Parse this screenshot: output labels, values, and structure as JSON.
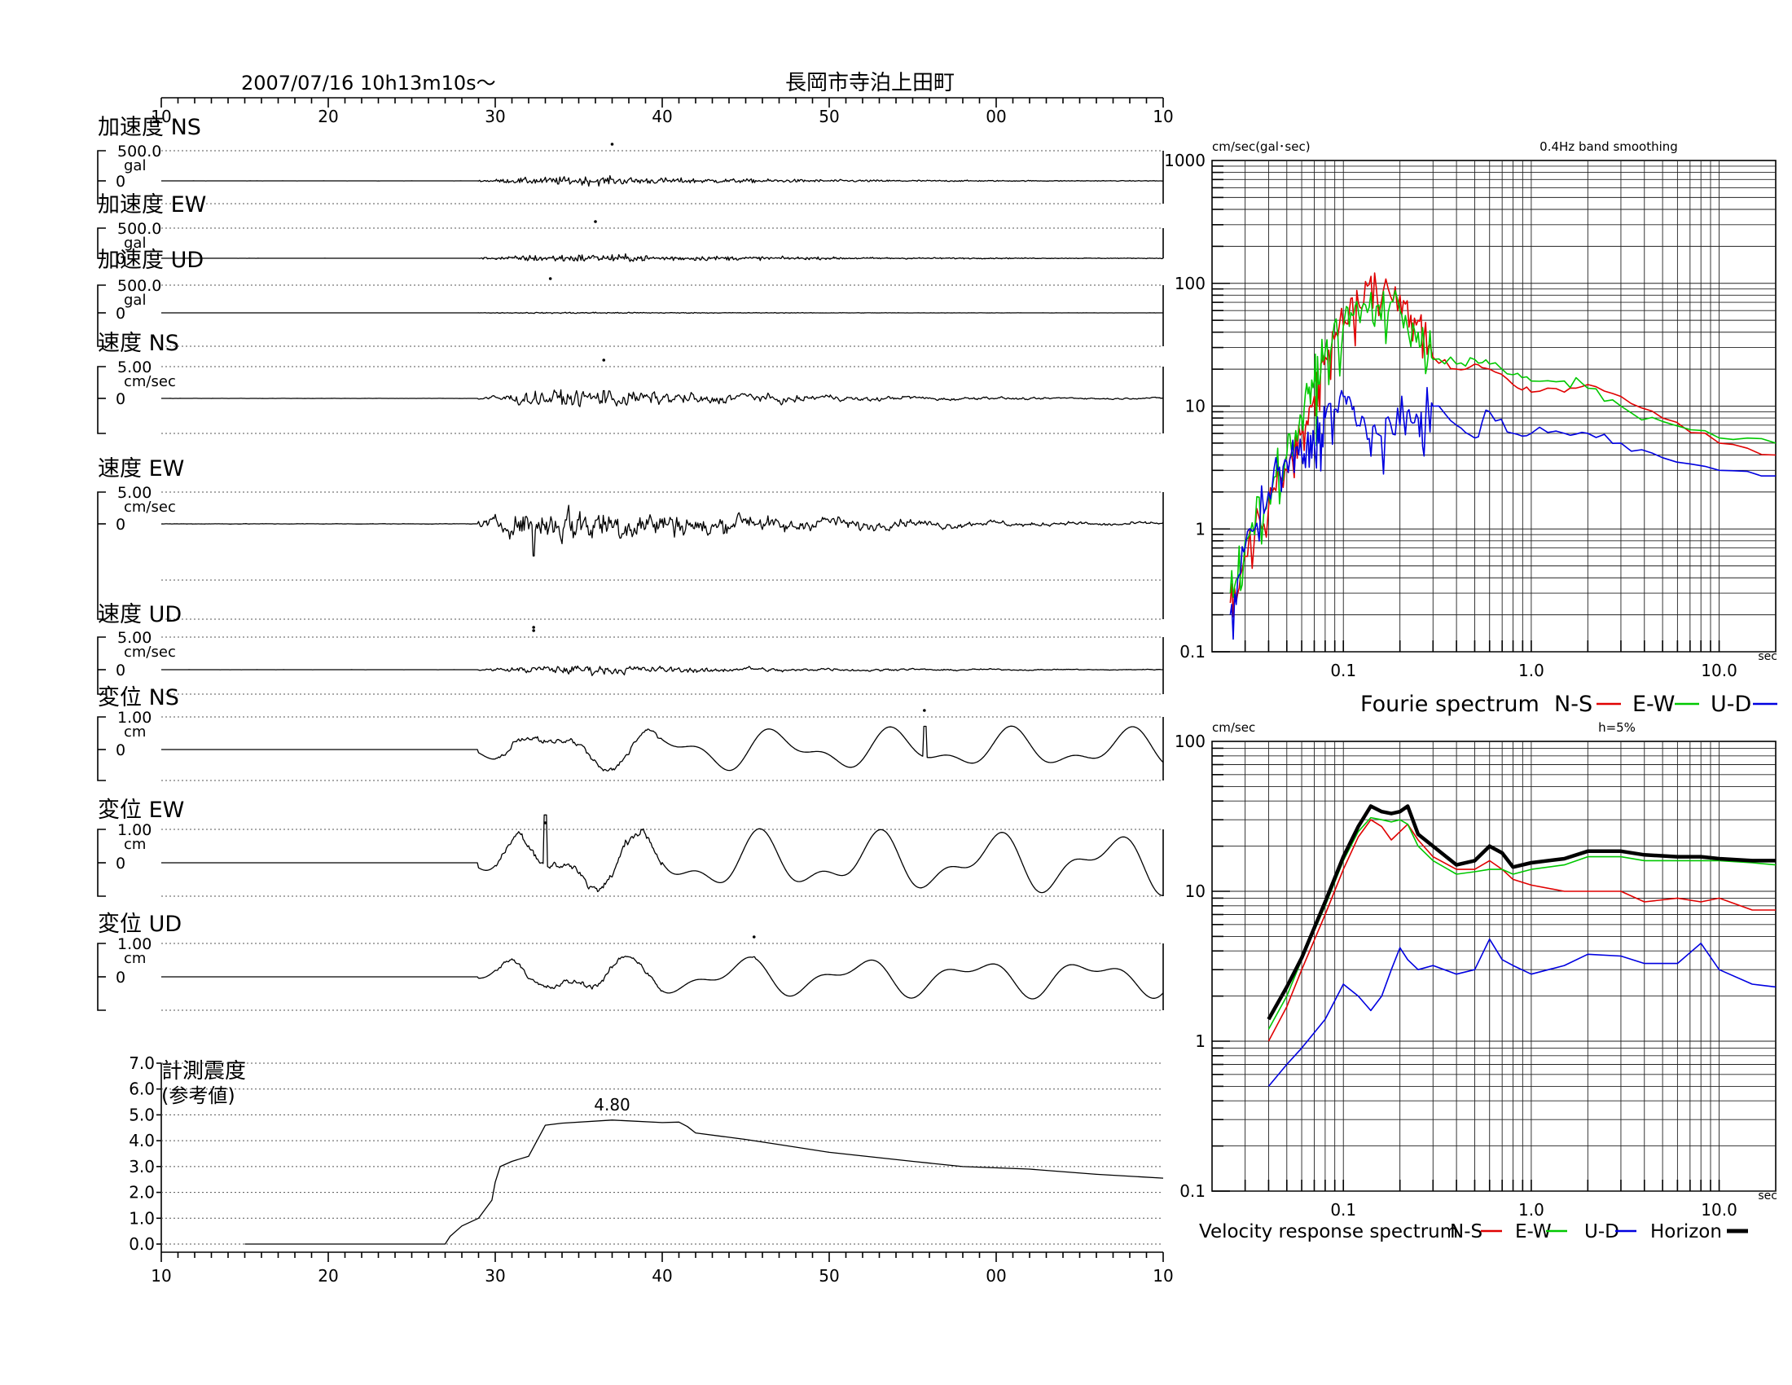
{
  "header": {
    "datetime": "2007/07/16  10h13m10s～",
    "station": "長岡市寺泊上田町"
  },
  "colors": {
    "ns": "#e00000",
    "ew": "#00c800",
    "ud": "#0000e0",
    "horizon": "#000000",
    "trace": "#000000"
  },
  "time_axis": {
    "ticks": [
      {
        "t": 0,
        "label": "10"
      },
      {
        "t": 10,
        "label": "20"
      },
      {
        "t": 20,
        "label": "30"
      },
      {
        "t": 30,
        "label": "40"
      },
      {
        "t": 40,
        "label": "50"
      },
      {
        "t": 50,
        "label": "00"
      },
      {
        "t": 60,
        "label": "10"
      }
    ],
    "range_s": [
      0,
      60
    ]
  },
  "chart_data": [
    {
      "type": "line",
      "name": "waveforms",
      "panels": [
        {
          "id": "acc_ns",
          "title": "加速度 NS",
          "scale_label": "500.0",
          "unit": "gal",
          "zero_label": "0",
          "peak_time_s": 27.0,
          "peak_amp": 0.32,
          "kind": "acc"
        },
        {
          "id": "acc_ew",
          "title": "加速度 EW",
          "scale_label": "500.0",
          "unit": "gal",
          "zero_label": "0",
          "peak_time_s": 26.0,
          "peak_amp": 0.3,
          "kind": "acc"
        },
        {
          "id": "acc_ud",
          "title": "加速度 UD",
          "scale_label": "500.0",
          "unit": "gal",
          "zero_label": "0",
          "peak_time_s": 23.3,
          "peak_amp": 0.06,
          "kind": "acc"
        },
        {
          "id": "vel_ns",
          "title": "速度 NS",
          "scale_label": "5.00",
          "unit": "cm/sec",
          "zero_label": "0",
          "peak_time_s": 26.5,
          "peak_amp": 0.7,
          "kind": "vel"
        },
        {
          "id": "vel_ew",
          "title": "速度 EW",
          "scale_label": "5.00",
          "unit": "cm/sec",
          "zero_label": "0",
          "peak_time_s": 22.3,
          "peak_amp": 1.5,
          "kind": "vel"
        },
        {
          "id": "vel_ud",
          "title": "速度 UD",
          "scale_label": "5.00",
          "unit": "cm/sec",
          "zero_label": "0",
          "peak_time_s": 22.3,
          "peak_amp": 0.35,
          "kind": "vel"
        },
        {
          "id": "dis_ns",
          "title": "変位 NS",
          "scale_label": "1.00",
          "unit": "cm",
          "zero_label": "0",
          "peak_time_s": 45.7,
          "peak_amp": 1.2,
          "kind": "dis"
        },
        {
          "id": "dis_ew",
          "title": "変位 EW",
          "scale_label": "1.00",
          "unit": "cm",
          "zero_label": "0",
          "peak_time_s": 23.0,
          "peak_amp": 1.7,
          "kind": "dis"
        },
        {
          "id": "dis_ud",
          "title": "変位 UD",
          "scale_label": "1.00",
          "unit": "cm",
          "zero_label": "0",
          "peak_time_s": 35.5,
          "peak_amp": 1.1,
          "kind": "dis"
        }
      ]
    },
    {
      "type": "line",
      "name": "seismic_intensity",
      "title": "計測震度",
      "subtitle": "(参考値)",
      "y_ticks": [
        "0.0",
        "1.0",
        "2.0",
        "3.0",
        "4.0",
        "5.0",
        "6.0",
        "7.0"
      ],
      "ylim": [
        0,
        7
      ],
      "max_label": "4.80",
      "max_time_s": 27.0,
      "points": [
        [
          5.0,
          0.0
        ],
        [
          17.0,
          0.0
        ],
        [
          17.3,
          0.3
        ],
        [
          18.0,
          0.7
        ],
        [
          19.0,
          1.0
        ],
        [
          19.8,
          1.7
        ],
        [
          20.0,
          2.4
        ],
        [
          20.3,
          3.0
        ],
        [
          21.0,
          3.2
        ],
        [
          22.0,
          3.4
        ],
        [
          22.5,
          4.0
        ],
        [
          23.0,
          4.6
        ],
        [
          24.0,
          4.68
        ],
        [
          27.0,
          4.8
        ],
        [
          30.0,
          4.7
        ],
        [
          31.0,
          4.72
        ],
        [
          31.5,
          4.55
        ],
        [
          32.0,
          4.3
        ],
        [
          35.0,
          4.05
        ],
        [
          37.0,
          3.85
        ],
        [
          40.0,
          3.55
        ],
        [
          45.0,
          3.2
        ],
        [
          48.0,
          3.0
        ],
        [
          52.0,
          2.9
        ],
        [
          56.0,
          2.7
        ],
        [
          60.0,
          2.55
        ]
      ]
    },
    {
      "type": "line",
      "name": "fourier_spectrum",
      "title": "Fourie spectrum",
      "units_label": "cm/sec(gal･sec)",
      "note": "0.4Hz band smoothing",
      "x_scale": "log",
      "y_scale": "log",
      "xlim": [
        0.02,
        20
      ],
      "ylim": [
        0.1,
        1000
      ],
      "x_ticks": [
        "0.1",
        "1.0",
        "10.0"
      ],
      "x_unit": "sec",
      "y_ticks": [
        "0.1",
        "1",
        "10",
        "100",
        "1000"
      ],
      "legend": [
        {
          "label": "N-S",
          "color": "#e00000"
        },
        {
          "label": "E-W",
          "color": "#00c800"
        },
        {
          "label": "U-D",
          "color": "#0000e0"
        }
      ],
      "series": [
        {
          "name": "N-S",
          "color": "#e00000",
          "points": [
            [
              0.025,
              0.25
            ],
            [
              0.03,
              0.6
            ],
            [
              0.04,
              1.5
            ],
            [
              0.05,
              3
            ],
            [
              0.06,
              6
            ],
            [
              0.07,
              12
            ],
            [
              0.08,
              25
            ],
            [
              0.1,
              45
            ],
            [
              0.12,
              70
            ],
            [
              0.15,
              90
            ],
            [
              0.2,
              80
            ],
            [
              0.25,
              50
            ],
            [
              0.3,
              25
            ],
            [
              0.4,
              20
            ],
            [
              0.5,
              22
            ],
            [
              0.6,
              20
            ],
            [
              0.8,
              15
            ],
            [
              1.0,
              13
            ],
            [
              1.5,
              13
            ],
            [
              2.0,
              15
            ],
            [
              3.0,
              12
            ],
            [
              5.0,
              8
            ],
            [
              10.0,
              5
            ],
            [
              20.0,
              4
            ]
          ]
        },
        {
          "name": "E-W",
          "color": "#00c800",
          "points": [
            [
              0.025,
              0.3
            ],
            [
              0.03,
              0.8
            ],
            [
              0.04,
              2
            ],
            [
              0.05,
              4
            ],
            [
              0.06,
              8
            ],
            [
              0.07,
              16
            ],
            [
              0.08,
              28
            ],
            [
              0.1,
              45
            ],
            [
              0.12,
              60
            ],
            [
              0.15,
              65
            ],
            [
              0.2,
              60
            ],
            [
              0.25,
              40
            ],
            [
              0.3,
              24
            ],
            [
              0.4,
              22
            ],
            [
              0.5,
              24
            ],
            [
              0.6,
              22
            ],
            [
              0.8,
              18
            ],
            [
              1.0,
              16
            ],
            [
              1.5,
              16
            ],
            [
              2.0,
              14
            ],
            [
              3.0,
              10
            ],
            [
              5.0,
              7.5
            ],
            [
              10.0,
              5.5
            ],
            [
              20.0,
              5
            ]
          ]
        },
        {
          "name": "U-D",
          "color": "#0000e0",
          "points": [
            [
              0.025,
              0.2
            ],
            [
              0.03,
              0.7
            ],
            [
              0.04,
              2
            ],
            [
              0.05,
              3.5
            ],
            [
              0.06,
              4
            ],
            [
              0.07,
              5
            ],
            [
              0.08,
              8
            ],
            [
              0.1,
              12
            ],
            [
              0.12,
              7
            ],
            [
              0.15,
              6
            ],
            [
              0.2,
              7
            ],
            [
              0.25,
              8
            ],
            [
              0.3,
              10
            ],
            [
              0.4,
              7
            ],
            [
              0.5,
              5.5
            ],
            [
              0.6,
              9
            ],
            [
              0.8,
              6
            ],
            [
              1.0,
              6
            ],
            [
              1.5,
              6
            ],
            [
              2.0,
              6
            ],
            [
              3.0,
              5
            ],
            [
              5.0,
              3.8
            ],
            [
              10.0,
              3
            ],
            [
              20.0,
              2.7
            ]
          ]
        }
      ]
    },
    {
      "type": "line",
      "name": "velocity_response_spectrum",
      "title": "Velocity response spectrum",
      "units_label": "cm/sec",
      "note": "h=5%",
      "x_scale": "log",
      "y_scale": "log",
      "xlim": [
        0.02,
        20
      ],
      "ylim": [
        0.1,
        100
      ],
      "x_ticks": [
        "0.1",
        "1.0",
        "10.0"
      ],
      "x_unit": "sec",
      "y_ticks": [
        "0.1",
        "1",
        "10",
        "100"
      ],
      "legend": [
        {
          "label": "N-S",
          "color": "#e00000"
        },
        {
          "label": "E-W",
          "color": "#00c800"
        },
        {
          "label": "U-D",
          "color": "#0000e0"
        },
        {
          "label": "Horizon",
          "color": "#000000"
        }
      ],
      "series": [
        {
          "name": "N-S",
          "color": "#e00000",
          "points": [
            [
              0.04,
              1.0
            ],
            [
              0.05,
              1.7
            ],
            [
              0.06,
              3
            ],
            [
              0.08,
              7
            ],
            [
              0.1,
              14
            ],
            [
              0.12,
              23
            ],
            [
              0.14,
              30
            ],
            [
              0.16,
              27
            ],
            [
              0.18,
              22
            ],
            [
              0.2,
              25
            ],
            [
              0.22,
              28
            ],
            [
              0.25,
              22
            ],
            [
              0.3,
              17
            ],
            [
              0.4,
              14
            ],
            [
              0.5,
              14
            ],
            [
              0.6,
              16
            ],
            [
              0.7,
              14
            ],
            [
              0.8,
              12
            ],
            [
              1.0,
              11
            ],
            [
              1.5,
              10
            ],
            [
              2.0,
              10
            ],
            [
              3.0,
              10
            ],
            [
              4.0,
              8.5
            ],
            [
              6.0,
              9
            ],
            [
              8.0,
              8.5
            ],
            [
              10.0,
              9
            ],
            [
              15.0,
              7.5
            ],
            [
              20.0,
              7.5
            ]
          ]
        },
        {
          "name": "E-W",
          "color": "#00c800",
          "points": [
            [
              0.04,
              1.2
            ],
            [
              0.05,
              2
            ],
            [
              0.06,
              3.5
            ],
            [
              0.08,
              8
            ],
            [
              0.1,
              16
            ],
            [
              0.12,
              25
            ],
            [
              0.14,
              31
            ],
            [
              0.16,
              30
            ],
            [
              0.18,
              29
            ],
            [
              0.2,
              30
            ],
            [
              0.22,
              28
            ],
            [
              0.25,
              20
            ],
            [
              0.3,
              16
            ],
            [
              0.4,
              13
            ],
            [
              0.5,
              13.5
            ],
            [
              0.6,
              14
            ],
            [
              0.7,
              14
            ],
            [
              0.8,
              13
            ],
            [
              1.0,
              14
            ],
            [
              1.5,
              15
            ],
            [
              2.0,
              17
            ],
            [
              3.0,
              17
            ],
            [
              4.0,
              16
            ],
            [
              6.0,
              16
            ],
            [
              8.0,
              16
            ],
            [
              10.0,
              16
            ],
            [
              15.0,
              15.5
            ],
            [
              20.0,
              15
            ]
          ]
        },
        {
          "name": "U-D",
          "color": "#0000e0",
          "points": [
            [
              0.04,
              0.5
            ],
            [
              0.05,
              0.7
            ],
            [
              0.06,
              0.9
            ],
            [
              0.08,
              1.4
            ],
            [
              0.1,
              2.4
            ],
            [
              0.12,
              2.0
            ],
            [
              0.14,
              1.6
            ],
            [
              0.16,
              2.0
            ],
            [
              0.18,
              3.0
            ],
            [
              0.2,
              4.2
            ],
            [
              0.22,
              3.5
            ],
            [
              0.25,
              3.0
            ],
            [
              0.3,
              3.2
            ],
            [
              0.4,
              2.8
            ],
            [
              0.5,
              3.0
            ],
            [
              0.6,
              4.8
            ],
            [
              0.7,
              3.5
            ],
            [
              0.8,
              3.2
            ],
            [
              1.0,
              2.8
            ],
            [
              1.5,
              3.2
            ],
            [
              2.0,
              3.8
            ],
            [
              3.0,
              3.7
            ],
            [
              4.0,
              3.3
            ],
            [
              6.0,
              3.3
            ],
            [
              8.0,
              4.5
            ],
            [
              10.0,
              3.0
            ],
            [
              15.0,
              2.4
            ],
            [
              20.0,
              2.3
            ]
          ]
        },
        {
          "name": "Horizon",
          "color": "#000000",
          "points": [
            [
              0.04,
              1.4
            ],
            [
              0.05,
              2.3
            ],
            [
              0.06,
              3.6
            ],
            [
              0.08,
              8.5
            ],
            [
              0.1,
              17
            ],
            [
              0.12,
              27
            ],
            [
              0.14,
              37
            ],
            [
              0.16,
              34
            ],
            [
              0.18,
              33
            ],
            [
              0.2,
              34
            ],
            [
              0.22,
              37
            ],
            [
              0.25,
              24
            ],
            [
              0.3,
              20
            ],
            [
              0.4,
              15
            ],
            [
              0.5,
              16
            ],
            [
              0.6,
              20
            ],
            [
              0.7,
              18
            ],
            [
              0.8,
              14.5
            ],
            [
              1.0,
              15.5
            ],
            [
              1.5,
              16.5
            ],
            [
              2.0,
              18.5
            ],
            [
              3.0,
              18.5
            ],
            [
              4.0,
              17.5
            ],
            [
              6.0,
              17
            ],
            [
              8.0,
              17
            ],
            [
              10.0,
              16.5
            ],
            [
              15.0,
              16
            ],
            [
              20.0,
              16
            ]
          ]
        }
      ]
    }
  ]
}
